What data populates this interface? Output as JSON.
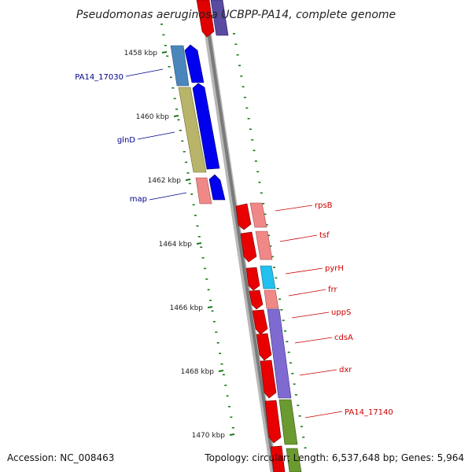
{
  "title": "Pseudomonas aeruginosa UCBPP-PA14, complete genome",
  "footer": {
    "accession": "Accession: NC_008463",
    "topology": "Topology: circular; Length: 6,537,648 bp; Genes: 5,964"
  },
  "colors": {
    "backbone": "#808080",
    "tick": "#1a7a1a",
    "left_label": "#00008b",
    "right_label": "#cc0000"
  },
  "kbp_ticks": [
    "1458 kbp",
    "1460 kbp",
    "1462 kbp",
    "1464 kbp",
    "1466 kbp",
    "1468 kbp",
    "1470 kbp"
  ],
  "left_genes": [
    "PA14_17030",
    "glnD",
    "map"
  ],
  "right_genes": [
    "rpsB",
    "tsf",
    "pyrH",
    "frr",
    "uppS",
    "cdsA",
    "dxr",
    "PA14_17140"
  ]
}
